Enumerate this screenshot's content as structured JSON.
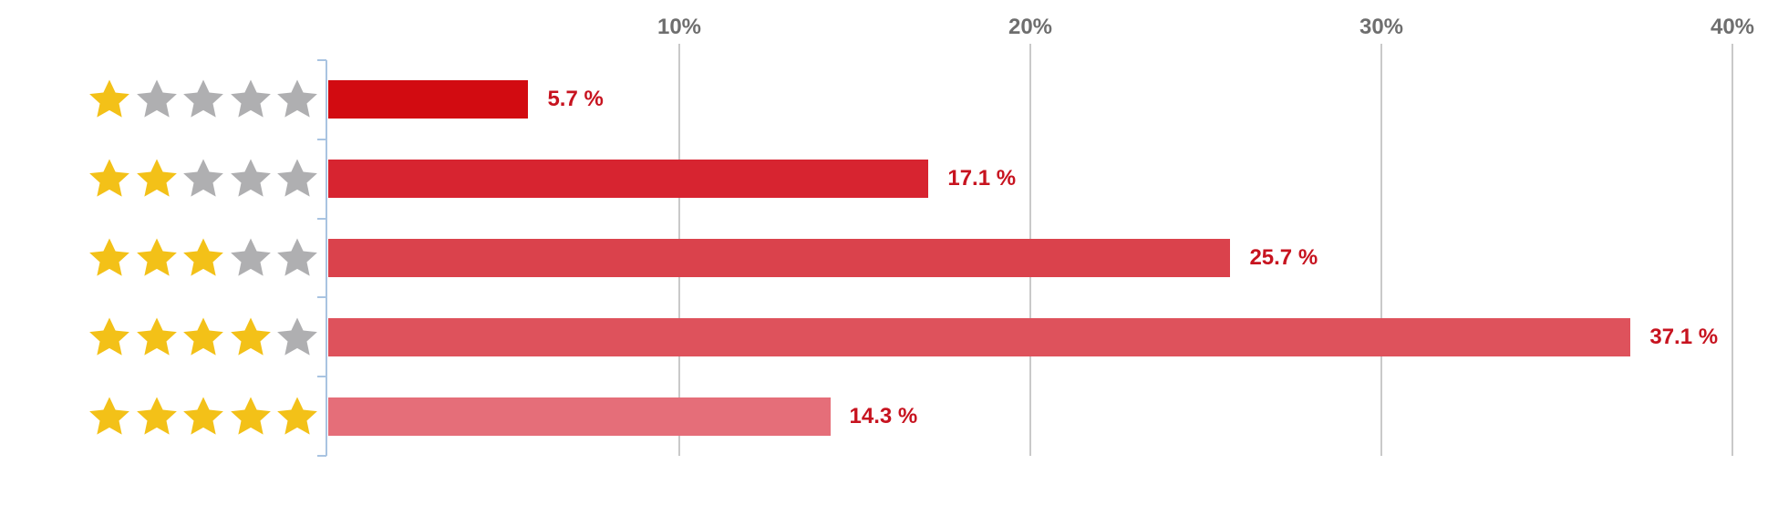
{
  "chart_data": {
    "type": "bar",
    "orientation": "horizontal",
    "title": "",
    "categories": [
      "1 star",
      "2 stars",
      "3 stars",
      "4 stars",
      "5 stars"
    ],
    "values": [
      5.7,
      17.1,
      25.7,
      37.1,
      14.3
    ],
    "value_labels": [
      "5.7 %",
      "17.1 %",
      "25.7 %",
      "37.1 %",
      "14.3 %"
    ],
    "stars_filled": [
      1,
      2,
      3,
      4,
      5
    ],
    "stars_total": 5,
    "bar_colors": [
      "#d20b11",
      "#d72430",
      "#da424c",
      "#de525c",
      "#e56e79"
    ],
    "xlim": [
      0,
      40
    ],
    "x_ticks": [
      10,
      20,
      30,
      40
    ],
    "x_tick_labels": [
      "10%",
      "20%",
      "30%",
      "40%"
    ],
    "grid": true,
    "legend": "none",
    "colors": {
      "value_label": "#c7131f",
      "tick_label": "#6e6e6e",
      "gridline": "#c9c9c9",
      "axis_line": "#a9c4e1",
      "star_filled": "#f3c118",
      "star_empty": "#afafb1",
      "background": "#ffffff"
    }
  }
}
